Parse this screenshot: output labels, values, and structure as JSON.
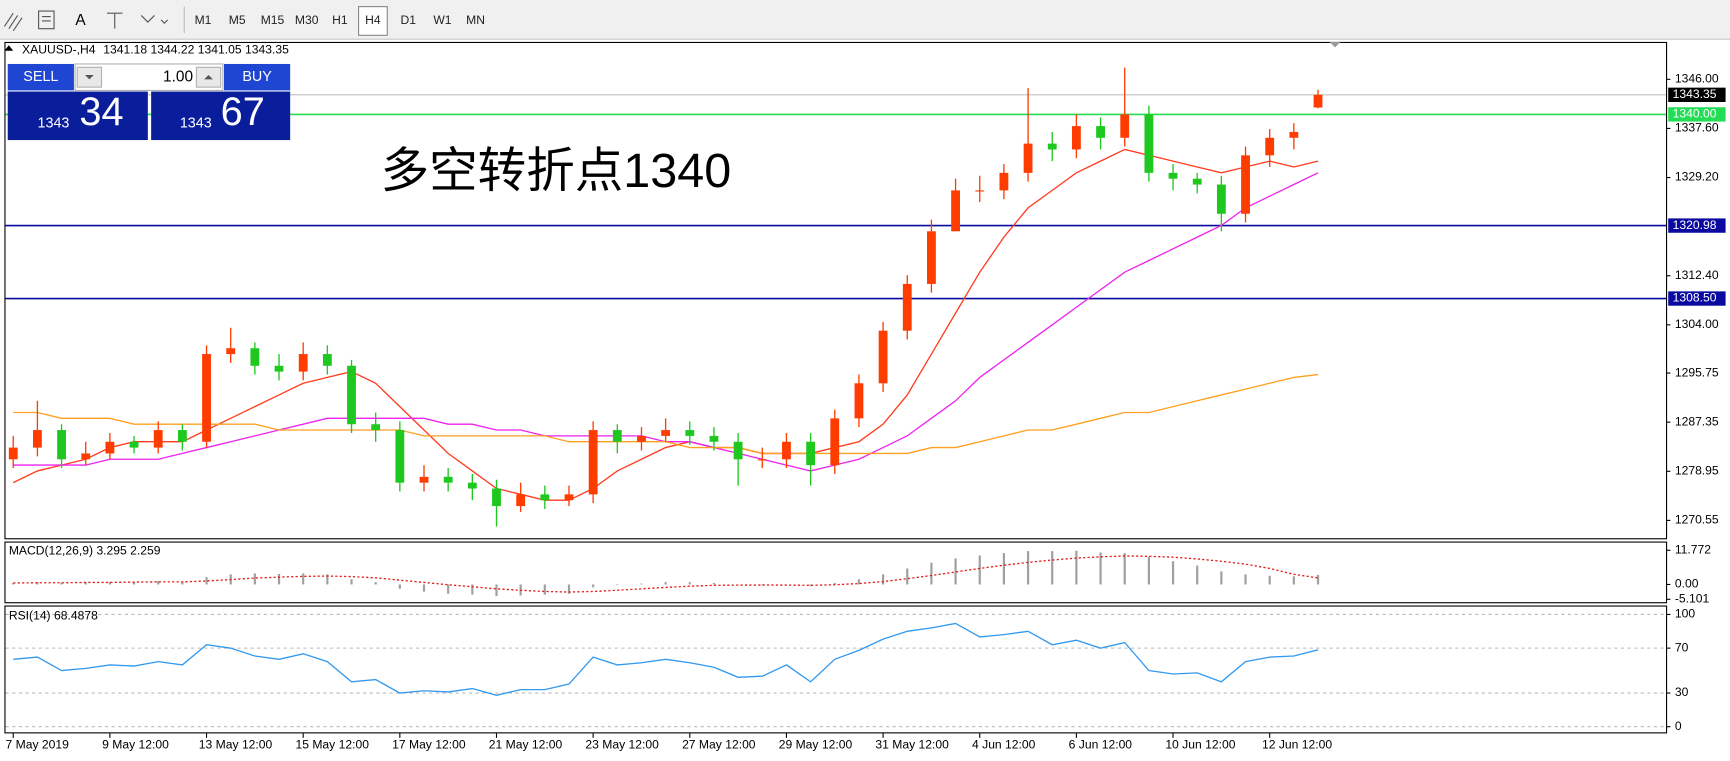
{
  "toolbar": {
    "text_tool": "A",
    "timeframes": [
      "M1",
      "M5",
      "M15",
      "M30",
      "H1",
      "H4",
      "D1",
      "W1",
      "MN"
    ]
  },
  "trade_panel": {
    "sell": "SELL",
    "buy": "BUY",
    "lot": "1.00",
    "bid_big": "1343",
    "bid_small": "34",
    "ask_big": "1343",
    "ask_small": "67"
  },
  "chart_data": {
    "type": "candlestick",
    "symbol": "XAUUSD-,H4",
    "annotation": "多空转折点1340",
    "up_color": "#ff3c00",
    "down_color": "#1ec81e",
    "categories": [
      "7 May 2019",
      null,
      null,
      null,
      "9 May 12:00",
      null,
      null,
      null,
      "13 May 12:00",
      null,
      null,
      null,
      "15 May 12:00",
      null,
      null,
      null,
      "17 May 12:00",
      null,
      null,
      null,
      "21 May 12:00",
      null,
      null,
      null,
      "23 May 12:00",
      null,
      null,
      null,
      "27 May 12:00",
      null,
      null,
      null,
      "29 May 12:00",
      null,
      null,
      null,
      "31 May 12:00",
      null,
      null,
      null,
      "4 Jun 12:00",
      null,
      null,
      null,
      "6 Jun 12:00",
      null,
      null,
      null,
      "10 Jun 12:00",
      null,
      null,
      null,
      "12 Jun 12:00",
      null,
      null
    ],
    "candles": {
      "open": [
        1281,
        1283,
        1286,
        1281,
        1282,
        1284,
        1283,
        1286,
        1284,
        1299,
        1300,
        1297,
        1296,
        1299,
        1297,
        1287,
        1286,
        1277,
        1278,
        1277,
        1276,
        1273,
        1275,
        1274,
        1275,
        1286,
        1284,
        1285,
        1286,
        1285,
        1284,
        1281,
        1281,
        1284,
        1280,
        1288,
        1294,
        1303,
        1311,
        1320,
        1327,
        1327,
        1330,
        1335,
        1334,
        1338,
        1336,
        1340,
        1330,
        1329,
        1328,
        1323,
        1333,
        1336,
        1341.18
      ],
      "high": [
        1285,
        1291,
        1287,
        1284,
        1285.5,
        1285,
        1287.5,
        1287,
        1300.5,
        1303.5,
        1301,
        1299,
        1301,
        1300.5,
        1298,
        1289,
        1287.5,
        1280,
        1279.5,
        1278.5,
        1277.5,
        1277,
        1276.5,
        1276.5,
        1287.5,
        1287,
        1286.5,
        1288,
        1287.5,
        1286.5,
        1285.5,
        1283,
        1285.5,
        1285.5,
        1289.5,
        1295.5,
        1304.5,
        1312.5,
        1322,
        1329,
        1329.5,
        1331.5,
        1344.5,
        1337,
        1340,
        1339.5,
        1348,
        1341.5,
        1331.5,
        1330,
        1329.5,
        1334.5,
        1337.5,
        1338.5,
        1344.22
      ],
      "low": [
        1279.5,
        1281.5,
        1279.5,
        1280,
        1281,
        1282,
        1282,
        1282.5,
        1283,
        1297.5,
        1295.5,
        1294.5,
        1294.5,
        1295.5,
        1285.5,
        1284,
        1275.5,
        1275.5,
        1275.5,
        1274,
        1269.5,
        1272,
        1272.5,
        1273,
        1273.5,
        1282,
        1282.5,
        1284,
        1283.5,
        1282.5,
        1276.5,
        1279.5,
        1279.5,
        1276.5,
        1278.5,
        1286.5,
        1292.5,
        1301.5,
        1309.5,
        1320.3,
        1325,
        1325.5,
        1328.5,
        1332,
        1332.5,
        1334,
        1334.5,
        1328.5,
        1327,
        1326.5,
        1320,
        1321.5,
        1331,
        1334,
        1341.05
      ],
      "close": [
        1283,
        1286,
        1281,
        1282,
        1284,
        1283,
        1286,
        1284,
        1299,
        1300,
        1297,
        1296,
        1299,
        1297,
        1287,
        1286,
        1277,
        1278,
        1277,
        1276,
        1273,
        1275,
        1274,
        1275,
        1286,
        1284,
        1285,
        1286,
        1285,
        1284,
        1281,
        1281,
        1284,
        1280,
        1288,
        1294,
        1303,
        1311,
        1320,
        1327,
        1327,
        1330,
        1335,
        1334,
        1338,
        1336,
        1340,
        1330,
        1329,
        1328,
        1323,
        1333,
        1336,
        1337,
        1343.35
      ]
    },
    "series": [
      {
        "color": "#ff3c1e",
        "values": [
          1277,
          1279,
          1280,
          1281,
          1283,
          1284,
          1284,
          1284,
          1286,
          1288,
          1290,
          1292,
          1294,
          1295,
          1296,
          1294,
          1290,
          1286,
          1282,
          1279,
          1276,
          1275,
          1274,
          1274,
          1276,
          1279,
          1281,
          1283,
          1284,
          1283,
          1283,
          1282,
          1282,
          1282,
          1283,
          1284,
          1287,
          1292,
          1299,
          1306,
          1313,
          1319,
          1324,
          1327,
          1330,
          1332,
          1334,
          1333,
          1332,
          1331,
          1330,
          1331,
          1332,
          1331,
          1332
        ]
      },
      {
        "color": "#ee22ee",
        "values": [
          1280,
          1280,
          1280,
          1280,
          1281,
          1281,
          1281,
          1282,
          1283,
          1284,
          1285,
          1286,
          1287,
          1288,
          1288,
          1288,
          1288,
          1288,
          1287,
          1287,
          1286,
          1286,
          1285,
          1285,
          1285,
          1285,
          1285,
          1284,
          1284,
          1283,
          1282,
          1281,
          1280,
          1279,
          1280,
          1281,
          1283,
          1285,
          1288,
          1291,
          1295,
          1298,
          1301,
          1304,
          1307,
          1310,
          1313,
          1315,
          1317,
          1319,
          1321,
          1324,
          1326,
          1328,
          1330
        ]
      },
      {
        "color": "#ffa020",
        "values": [
          1289,
          1289,
          1288,
          1288,
          1288,
          1287,
          1287,
          1287,
          1287,
          1287,
          1287,
          1286,
          1286,
          1286,
          1286,
          1286,
          1286,
          1285,
          1285,
          1285,
          1285,
          1285,
          1285,
          1284,
          1284,
          1284,
          1284,
          1284,
          1283,
          1283,
          1283,
          1282,
          1282,
          1282,
          1282,
          1282,
          1282,
          1282,
          1283,
          1283,
          1284,
          1285,
          1286,
          1286,
          1287,
          1288,
          1289,
          1289,
          1290,
          1291,
          1292,
          1293,
          1294,
          1295,
          1295.5
        ]
      }
    ],
    "levels": [
      {
        "value": 1340,
        "label": "1340.00",
        "color": "#22dd55"
      },
      {
        "value": 1320.98,
        "label": "1320.98",
        "color": "#0a0aa0"
      },
      {
        "value": 1308.5,
        "label": "1308.50",
        "color": "#0a0aa0"
      }
    ],
    "ylim": [
      1267.5,
      1352.4
    ],
    "yticks": [
      {
        "value": 1346,
        "label": "1346.00"
      },
      {
        "value": 1337.6,
        "label": "1337.60"
      },
      {
        "value": 1329.2,
        "label": "1329.20"
      },
      {
        "value": 1312.4,
        "label": "1312.40"
      },
      {
        "value": 1304,
        "label": "1304.00"
      },
      {
        "value": 1295.75,
        "label": "1295.75"
      },
      {
        "value": 1287.35,
        "label": "1287.35"
      },
      {
        "value": 1278.95,
        "label": "1278.95"
      },
      {
        "value": 1270.55,
        "label": "1270.55"
      }
    ],
    "macd": {
      "name": "MACD(12,26,9)",
      "hist_color": "#a0a0a0",
      "signal_color": "#e0201e",
      "histogram": [
        0.5,
        0.8,
        0.6,
        0.7,
        0.9,
        0.9,
        1.2,
        1.0,
        2.5,
        3.5,
        3.8,
        3.6,
        3.8,
        3.5,
        1.8,
        0.8,
        -1.5,
        -2.5,
        -3.2,
        -3.5,
        -4.0,
        -3.8,
        -3.5,
        -3.2,
        -1.0,
        -0.2,
        0.3,
        0.8,
        0.8,
        0.5,
        0.0,
        -0.3,
        0.0,
        -0.6,
        0.5,
        1.8,
        3.5,
        5.5,
        7.5,
        9.0,
        10.0,
        10.8,
        11.5,
        11.5,
        11.6,
        11.0,
        10.8,
        9.5,
        8.0,
        6.5,
        4.5,
        3.5,
        3.0,
        2.8,
        3.295
      ],
      "signal": [
        0.5,
        0.6,
        0.6,
        0.7,
        0.7,
        0.8,
        0.9,
        0.9,
        1.2,
        1.7,
        2.2,
        2.5,
        2.8,
        2.9,
        2.7,
        2.3,
        1.5,
        0.7,
        -0.1,
        -0.8,
        -1.5,
        -2.0,
        -2.4,
        -2.6,
        -2.4,
        -2.0,
        -1.5,
        -1.0,
        -0.6,
        -0.3,
        -0.2,
        -0.2,
        -0.2,
        -0.3,
        -0.1,
        0.3,
        1.0,
        2.0,
        3.1,
        4.3,
        5.5,
        6.6,
        7.6,
        8.4,
        9.1,
        9.5,
        9.8,
        9.7,
        9.4,
        8.8,
        8.0,
        7.0,
        5.5,
        3.5,
        2.259
      ],
      "ylim": [
        -6.1,
        14.4
      ],
      "yticks": [
        11.772,
        {
          "value": 0,
          "label": "0.00"
        },
        -5.101
      ]
    },
    "rsi": {
      "name": "RSI(14)",
      "color": "#3399ee",
      "values": [
        60,
        62,
        50,
        52,
        55,
        54,
        58,
        55,
        73,
        70,
        63,
        60,
        65,
        58,
        40,
        42,
        30,
        32,
        31,
        34,
        28,
        33,
        33,
        38,
        62,
        55,
        57,
        60,
        57,
        53,
        44,
        45,
        55,
        40,
        60,
        68,
        78,
        85,
        88,
        92,
        80,
        82,
        85,
        73,
        77,
        70,
        75,
        50,
        47,
        48,
        40,
        58,
        62,
        63,
        68.4878
      ],
      "ylim": [
        -5,
        107
      ],
      "yticks": [
        100,
        70,
        30,
        0
      ]
    }
  }
}
